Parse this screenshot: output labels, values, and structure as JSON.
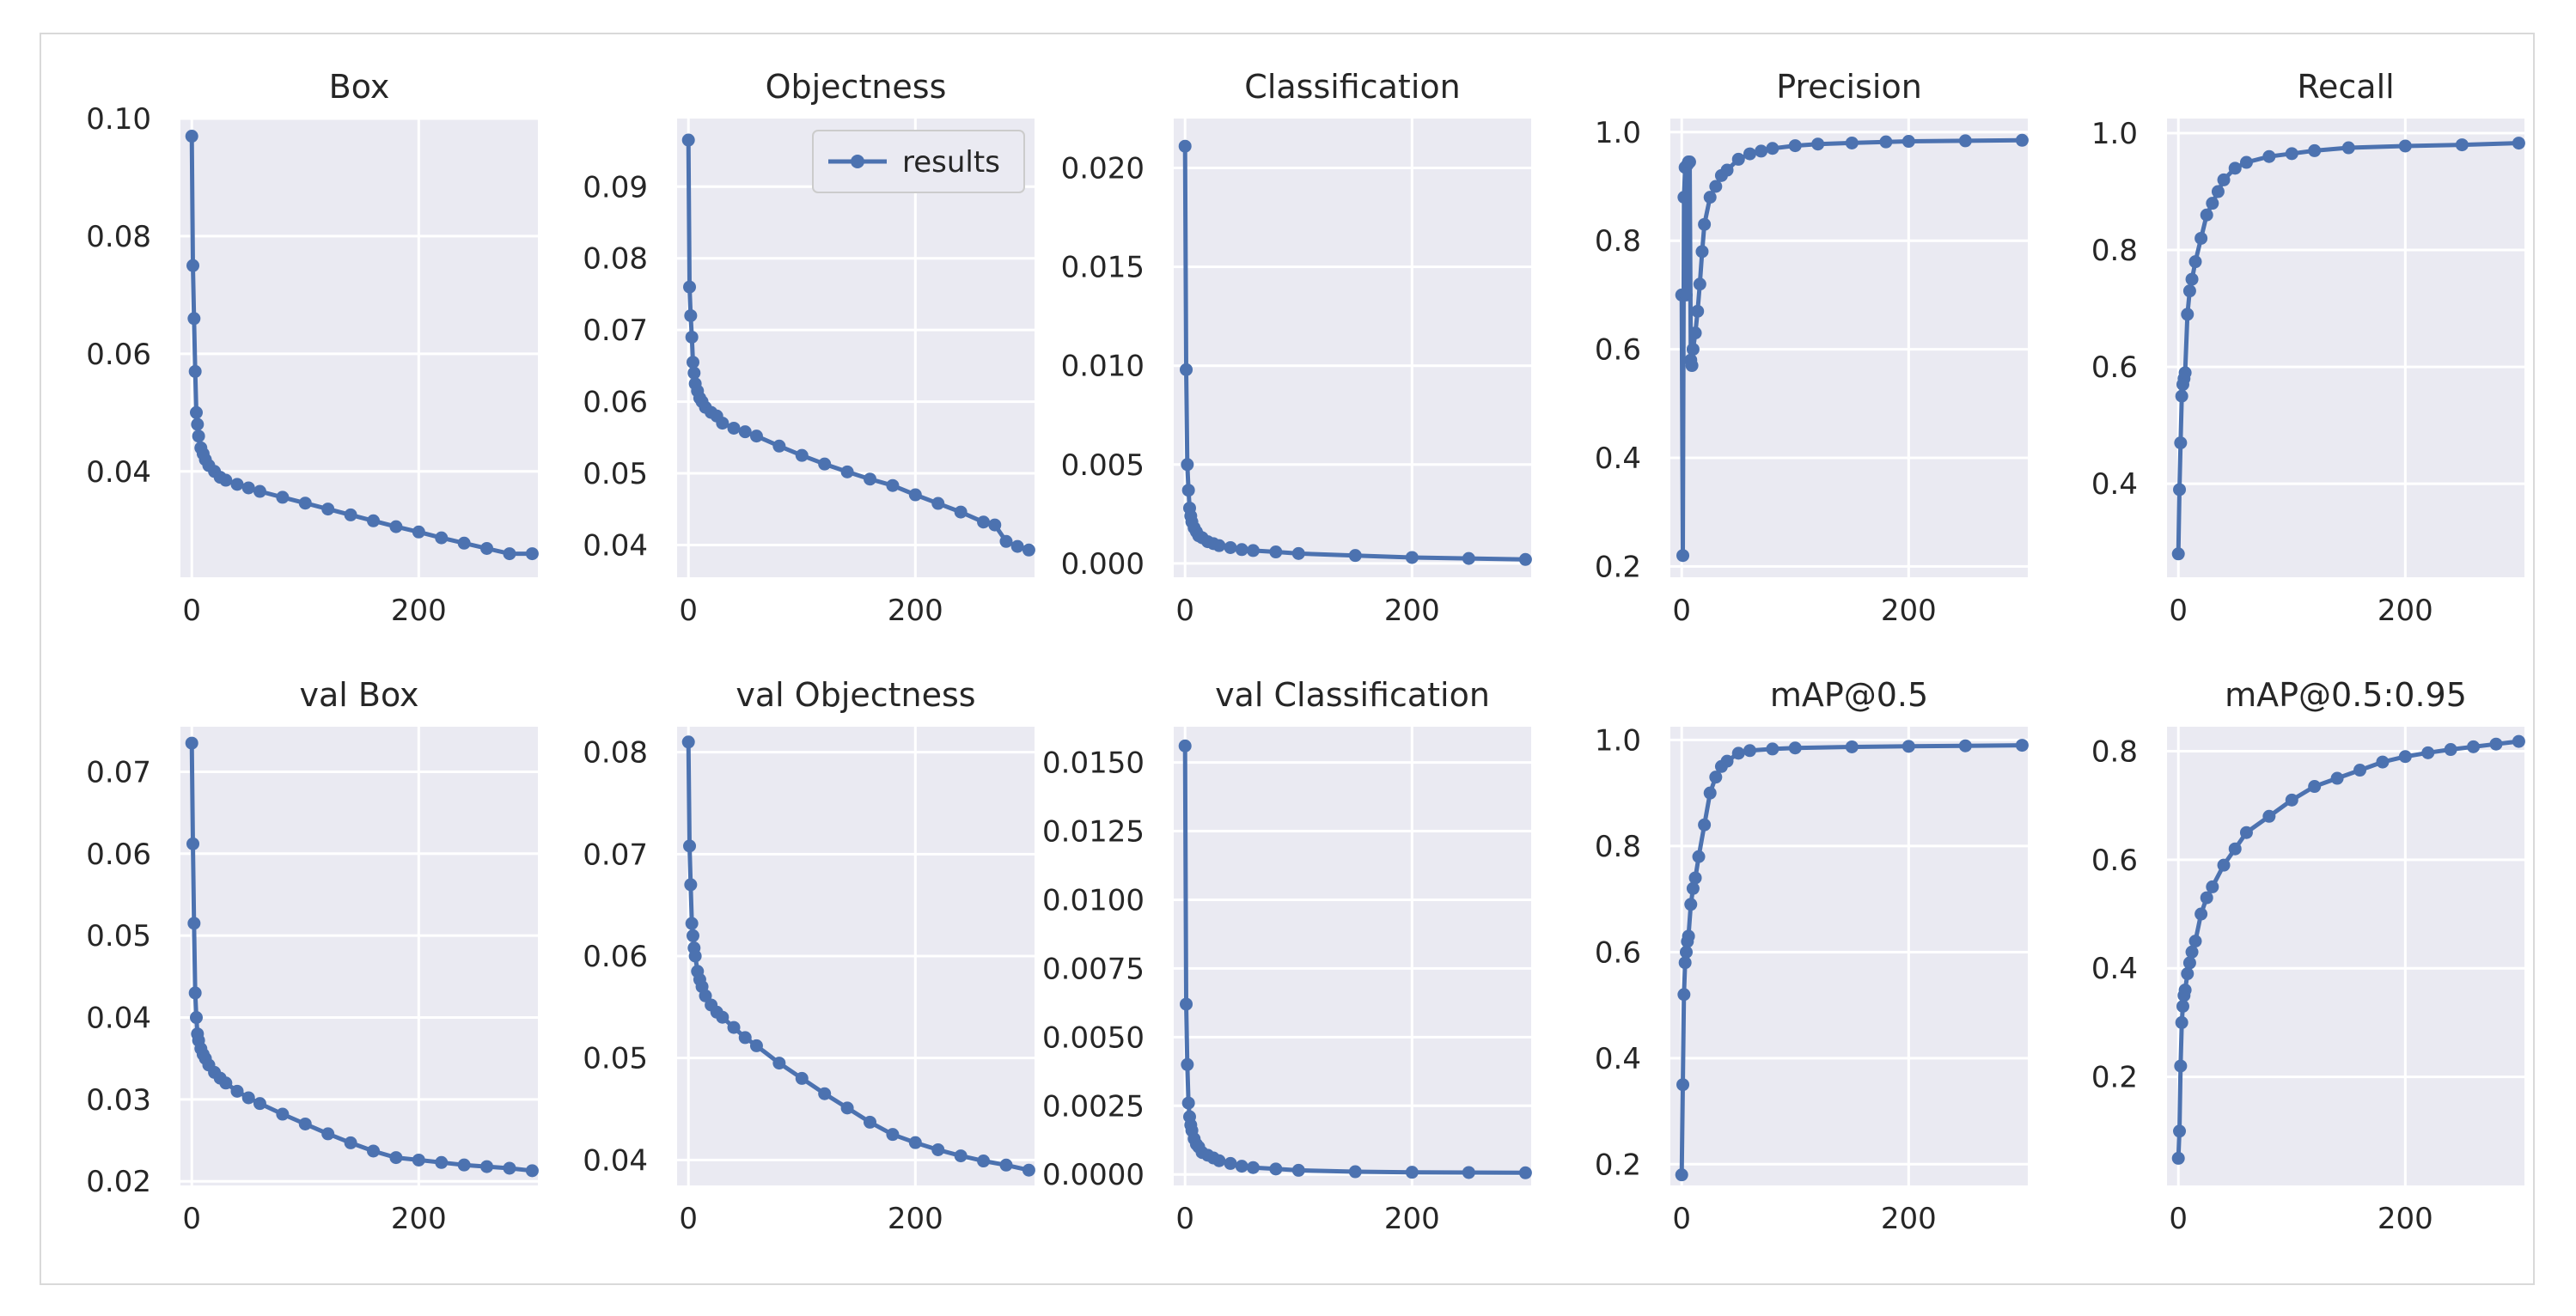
{
  "figure": {
    "legend_label": "results",
    "line_color": "#4c72b0",
    "panel_bg": "#eaeaf2",
    "grid_color": "#ffffff"
  },
  "chart_data": [
    {
      "type": "line",
      "title": "Box",
      "xlabel": "",
      "ylabel": "",
      "xlim": [
        -10,
        305
      ],
      "ylim": [
        0.022,
        0.1
      ],
      "xticks": [
        0,
        200
      ],
      "yticks": [
        0.04,
        0.06,
        0.08,
        0.1
      ],
      "ytick_labels": [
        "0.04",
        "0.06",
        "0.08",
        "0.10"
      ],
      "legend": "none",
      "series": [
        {
          "name": "results",
          "x": [
            0,
            1,
            2,
            3,
            4,
            5,
            6,
            8,
            10,
            12,
            15,
            20,
            25,
            30,
            40,
            50,
            60,
            80,
            100,
            120,
            140,
            160,
            180,
            200,
            220,
            240,
            260,
            280,
            300
          ],
          "y": [
            0.097,
            0.075,
            0.066,
            0.057,
            0.05,
            0.048,
            0.046,
            0.044,
            0.043,
            0.042,
            0.041,
            0.04,
            0.039,
            0.0385,
            0.0378,
            0.0372,
            0.0366,
            0.0356,
            0.0346,
            0.0336,
            0.0326,
            0.0316,
            0.0306,
            0.0297,
            0.0287,
            0.0278,
            0.0269,
            0.026,
            0.026
          ]
        }
      ]
    },
    {
      "type": "line",
      "title": "Objectness",
      "xlabel": "",
      "ylabel": "",
      "xlim": [
        -10,
        305
      ],
      "ylim": [
        0.0355,
        0.0995
      ],
      "xticks": [
        0,
        200
      ],
      "yticks": [
        0.04,
        0.05,
        0.06,
        0.07,
        0.08,
        0.09
      ],
      "ytick_labels": [
        "0.04",
        "0.05",
        "0.06",
        "0.07",
        "0.08",
        "0.09"
      ],
      "legend": "upper right",
      "series": [
        {
          "name": "results",
          "x": [
            0,
            1,
            2,
            3,
            4,
            5,
            6,
            8,
            10,
            12,
            15,
            20,
            25,
            30,
            40,
            50,
            60,
            80,
            100,
            120,
            140,
            160,
            180,
            200,
            220,
            240,
            260,
            270,
            280,
            290,
            300
          ],
          "y": [
            0.0965,
            0.076,
            0.072,
            0.069,
            0.0655,
            0.064,
            0.0625,
            0.0615,
            0.0605,
            0.06,
            0.0592,
            0.0585,
            0.058,
            0.057,
            0.0563,
            0.0558,
            0.0552,
            0.0538,
            0.0525,
            0.0513,
            0.0502,
            0.0492,
            0.0483,
            0.047,
            0.0458,
            0.0446,
            0.0432,
            0.0428,
            0.0405,
            0.0398,
            0.0393
          ]
        }
      ]
    },
    {
      "type": "line",
      "title": "Classification",
      "xlabel": "",
      "ylabel": "",
      "xlim": [
        -10,
        305
      ],
      "ylim": [
        -0.0007,
        0.0225
      ],
      "xticks": [
        0,
        200
      ],
      "yticks": [
        0,
        0.005,
        0.01,
        0.015,
        0.02
      ],
      "ytick_labels": [
        "0.000",
        "0.005",
        "0.010",
        "0.015",
        "0.020"
      ],
      "legend": "none",
      "series": [
        {
          "name": "results",
          "x": [
            0,
            1,
            2,
            3,
            4,
            5,
            6,
            8,
            10,
            12,
            15,
            20,
            25,
            30,
            40,
            50,
            60,
            80,
            100,
            150,
            200,
            250,
            300
          ],
          "y": [
            0.0211,
            0.0098,
            0.005,
            0.0037,
            0.0028,
            0.0024,
            0.0021,
            0.0018,
            0.0016,
            0.0014,
            0.0013,
            0.0011,
            0.001,
            0.0009,
            0.0008,
            0.0007,
            0.00065,
            0.00058,
            0.0005,
            0.0004,
            0.0003,
            0.00025,
            0.0002
          ]
        }
      ]
    },
    {
      "type": "line",
      "title": "Precision",
      "xlabel": "",
      "ylabel": "",
      "xlim": [
        -10,
        305
      ],
      "ylim": [
        0.18,
        1.025
      ],
      "xticks": [
        0,
        200
      ],
      "yticks": [
        0.2,
        0.4,
        0.6,
        0.8,
        1.0
      ],
      "ytick_labels": [
        "0.2",
        "0.4",
        "0.6",
        "0.8",
        "1.0"
      ],
      "legend": "none",
      "series": [
        {
          "name": "results",
          "x": [
            0,
            1,
            2,
            3,
            4,
            5,
            6,
            7,
            8,
            9,
            10,
            12,
            14,
            16,
            18,
            20,
            25,
            30,
            35,
            40,
            50,
            60,
            70,
            80,
            100,
            120,
            150,
            180,
            200,
            250,
            300
          ],
          "y": [
            0.7,
            0.22,
            0.88,
            0.935,
            0.7,
            0.94,
            0.945,
            0.945,
            0.58,
            0.57,
            0.6,
            0.63,
            0.67,
            0.72,
            0.78,
            0.83,
            0.88,
            0.9,
            0.92,
            0.93,
            0.95,
            0.96,
            0.965,
            0.97,
            0.975,
            0.978,
            0.98,
            0.982,
            0.983,
            0.984,
            0.985
          ]
        }
      ]
    },
    {
      "type": "line",
      "title": "Recall",
      "xlabel": "",
      "ylabel": "",
      "xlim": [
        -10,
        305
      ],
      "ylim": [
        0.24,
        1.025
      ],
      "xticks": [
        0,
        200
      ],
      "yticks": [
        0.4,
        0.6,
        0.8,
        1.0
      ],
      "ytick_labels": [
        "0.4",
        "0.6",
        "0.8",
        "1.0"
      ],
      "legend": "none",
      "series": [
        {
          "name": "results",
          "x": [
            0,
            1,
            2,
            3,
            4,
            5,
            6,
            8,
            10,
            12,
            15,
            20,
            25,
            30,
            35,
            40,
            50,
            60,
            80,
            100,
            120,
            150,
            200,
            250,
            300
          ],
          "y": [
            0.28,
            0.39,
            0.47,
            0.55,
            0.57,
            0.58,
            0.59,
            0.69,
            0.73,
            0.75,
            0.78,
            0.82,
            0.86,
            0.88,
            0.9,
            0.92,
            0.94,
            0.95,
            0.96,
            0.965,
            0.97,
            0.975,
            0.978,
            0.98,
            0.983
          ]
        }
      ]
    },
    {
      "type": "line",
      "title": "val Box",
      "xlabel": "",
      "ylabel": "",
      "xlim": [
        -10,
        305
      ],
      "ylim": [
        0.0195,
        0.0755
      ],
      "xticks": [
        0,
        200
      ],
      "yticks": [
        0.02,
        0.03,
        0.04,
        0.05,
        0.06,
        0.07
      ],
      "ytick_labels": [
        "0.02",
        "0.03",
        "0.04",
        "0.05",
        "0.06",
        "0.07"
      ],
      "legend": "none",
      "series": [
        {
          "name": "results",
          "x": [
            0,
            1,
            2,
            3,
            4,
            5,
            6,
            8,
            10,
            12,
            15,
            20,
            25,
            30,
            40,
            50,
            60,
            80,
            100,
            120,
            140,
            160,
            180,
            200,
            220,
            240,
            260,
            280,
            300
          ],
          "y": [
            0.0735,
            0.0612,
            0.0515,
            0.043,
            0.04,
            0.038,
            0.0372,
            0.0362,
            0.0355,
            0.035,
            0.0342,
            0.0333,
            0.0326,
            0.032,
            0.031,
            0.0302,
            0.0295,
            0.0282,
            0.027,
            0.0258,
            0.0247,
            0.0237,
            0.0229,
            0.0226,
            0.0223,
            0.022,
            0.0218,
            0.0216,
            0.0213
          ]
        }
      ]
    },
    {
      "type": "line",
      "title": "val Objectness",
      "xlabel": "",
      "ylabel": "",
      "xlim": [
        -10,
        305
      ],
      "ylim": [
        0.0375,
        0.0825
      ],
      "xticks": [
        0,
        200
      ],
      "yticks": [
        0.04,
        0.05,
        0.06,
        0.07,
        0.08
      ],
      "ytick_labels": [
        "0.04",
        "0.05",
        "0.06",
        "0.07",
        "0.08"
      ],
      "legend": "none",
      "series": [
        {
          "name": "results",
          "x": [
            0,
            1,
            2,
            3,
            4,
            5,
            6,
            8,
            10,
            12,
            15,
            20,
            25,
            30,
            40,
            50,
            60,
            80,
            100,
            120,
            140,
            160,
            180,
            200,
            220,
            240,
            260,
            280,
            300
          ],
          "y": [
            0.081,
            0.0708,
            0.067,
            0.0632,
            0.062,
            0.0608,
            0.06,
            0.0585,
            0.0577,
            0.057,
            0.0561,
            0.0552,
            0.0545,
            0.054,
            0.053,
            0.052,
            0.0512,
            0.0495,
            0.048,
            0.0465,
            0.0451,
            0.0437,
            0.0425,
            0.0417,
            0.041,
            0.0404,
            0.0399,
            0.0395,
            0.039
          ]
        }
      ]
    },
    {
      "type": "line",
      "title": "val Classification",
      "xlabel": "",
      "ylabel": "",
      "xlim": [
        -10,
        305
      ],
      "ylim": [
        -0.0004,
        0.0163
      ],
      "xticks": [
        0,
        200
      ],
      "yticks": [
        0,
        0.0025,
        0.005,
        0.0075,
        0.01,
        0.0125,
        0.015
      ],
      "ytick_labels": [
        "0.0000",
        "0.0025",
        "0.0050",
        "0.0075",
        "0.0100",
        "0.0125",
        "0.0150"
      ],
      "legend": "none",
      "series": [
        {
          "name": "results",
          "x": [
            0,
            1,
            2,
            3,
            4,
            5,
            6,
            8,
            10,
            12,
            15,
            20,
            25,
            30,
            40,
            50,
            60,
            80,
            100,
            150,
            200,
            250,
            300
          ],
          "y": [
            0.0156,
            0.0062,
            0.004,
            0.0026,
            0.0021,
            0.0018,
            0.0016,
            0.0013,
            0.0011,
            0.001,
            0.0008,
            0.0007,
            0.0006,
            0.0005,
            0.0004,
            0.0003,
            0.00025,
            0.0002,
            0.00015,
            0.0001,
            8e-05,
            7e-05,
            6e-05
          ]
        }
      ]
    },
    {
      "type": "line",
      "title": "mAP@0.5",
      "xlabel": "",
      "ylabel": "",
      "xlim": [
        -10,
        305
      ],
      "ylim": [
        0.16,
        1.025
      ],
      "xticks": [
        0,
        200
      ],
      "yticks": [
        0.2,
        0.4,
        0.6,
        0.8,
        1.0
      ],
      "ytick_labels": [
        "0.2",
        "0.4",
        "0.6",
        "0.8",
        "1.0"
      ],
      "legend": "none",
      "series": [
        {
          "name": "results",
          "x": [
            0,
            1,
            2,
            3,
            4,
            5,
            6,
            8,
            10,
            12,
            15,
            20,
            25,
            30,
            35,
            40,
            50,
            60,
            80,
            100,
            150,
            200,
            250,
            300
          ],
          "y": [
            0.18,
            0.35,
            0.52,
            0.58,
            0.6,
            0.62,
            0.63,
            0.69,
            0.72,
            0.74,
            0.78,
            0.84,
            0.9,
            0.93,
            0.95,
            0.96,
            0.975,
            0.98,
            0.983,
            0.985,
            0.987,
            0.988,
            0.989,
            0.99
          ]
        }
      ]
    },
    {
      "type": "line",
      "title": "mAP@0.5:0.95",
      "xlabel": "",
      "ylabel": "",
      "xlim": [
        -10,
        305
      ],
      "ylim": [
        0.0,
        0.845
      ],
      "xticks": [
        0,
        200
      ],
      "yticks": [
        0.2,
        0.4,
        0.6,
        0.8
      ],
      "ytick_labels": [
        "0.2",
        "0.4",
        "0.6",
        "0.8"
      ],
      "legend": "none",
      "series": [
        {
          "name": "results",
          "x": [
            0,
            1,
            2,
            3,
            4,
            5,
            6,
            8,
            10,
            12,
            15,
            20,
            25,
            30,
            40,
            50,
            60,
            80,
            100,
            120,
            140,
            160,
            180,
            200,
            220,
            240,
            260,
            280,
            300
          ],
          "y": [
            0.05,
            0.1,
            0.22,
            0.3,
            0.33,
            0.35,
            0.36,
            0.39,
            0.41,
            0.43,
            0.45,
            0.5,
            0.53,
            0.55,
            0.59,
            0.62,
            0.65,
            0.68,
            0.71,
            0.735,
            0.75,
            0.765,
            0.78,
            0.79,
            0.797,
            0.803,
            0.808,
            0.813,
            0.818
          ]
        }
      ]
    }
  ]
}
